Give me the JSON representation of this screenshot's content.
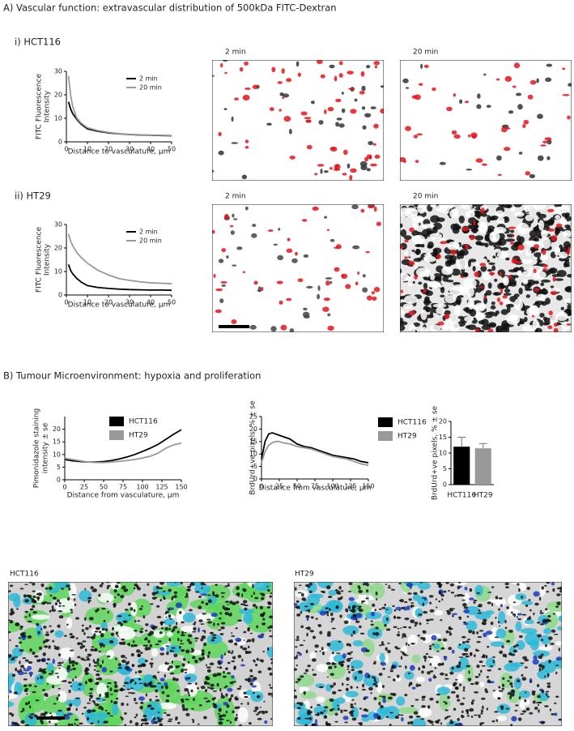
{
  "panel_a": {
    "title": "A)  Vascular function: extravascular distribution of 500kDa FITC-Dextran",
    "row_1": "i)  HCT116",
    "row_2": "ii) HT29",
    "images": [
      "2 min",
      "20 min",
      "2 min",
      "20 min"
    ]
  },
  "panel_b": {
    "title": "B)  Tumour Microenvironment: hypoxia and proliferation",
    "images": [
      "HCT116",
      "HT29"
    ]
  },
  "chart_data": [
    {
      "type": "line",
      "ylabel": [
        "FITC Fluorescence",
        "Intensity"
      ],
      "xlabel": "Distance to vasculature, µm",
      "x": [
        1,
        2,
        3,
        5,
        7,
        10,
        15,
        20,
        25,
        30,
        35,
        40,
        45,
        50
      ],
      "series": [
        {
          "name": "2 min",
          "color": "#000000",
          "values": [
            17,
            14,
            12,
            9.5,
            7.5,
            5.5,
            4.5,
            3.8,
            3.4,
            3.1,
            2.9,
            2.8,
            2.7,
            2.6
          ]
        },
        {
          "name": "20 min",
          "color": "#999999",
          "values": [
            28,
            20,
            15,
            10,
            8,
            6,
            4.8,
            4,
            3.5,
            3.2,
            3,
            2.9,
            2.8,
            2.7
          ]
        }
      ],
      "xlim": [
        0,
        50
      ],
      "xticks": [
        0,
        10,
        20,
        30,
        40,
        50
      ],
      "ylim": [
        0,
        30
      ],
      "yticks": [
        0,
        10,
        20,
        30
      ],
      "legend_marker": "line"
    },
    {
      "type": "line",
      "ylabel": [
        "FITC Fluorescence",
        "Intensity"
      ],
      "xlabel": "Distance to vasculature, µm",
      "x": [
        1,
        2,
        3,
        5,
        7,
        10,
        15,
        20,
        25,
        30,
        35,
        40,
        45,
        50
      ],
      "series": [
        {
          "name": "2 min",
          "color": "#000000",
          "values": [
            13,
            10.5,
            9,
            7,
            5.5,
            4,
            3.2,
            2.8,
            2.5,
            2.3,
            2.2,
            2.1,
            2.1,
            2
          ]
        },
        {
          "name": "20 min",
          "color": "#999999",
          "values": [
            26,
            23,
            21,
            18,
            16,
            13.5,
            10.5,
            8.5,
            7,
            6.2,
            5.6,
            5.2,
            5,
            4.8
          ]
        }
      ],
      "xlim": [
        0,
        50
      ],
      "xticks": [
        0,
        10,
        20,
        30,
        40,
        50
      ],
      "ylim": [
        0,
        30
      ],
      "yticks": [
        0,
        10,
        20,
        30
      ],
      "legend_marker": "line"
    },
    {
      "type": "line",
      "ylabel": [
        "Pimonidazole staining",
        "intensity ± se"
      ],
      "xlabel": "Distance from vasculature, µm",
      "x": [
        0,
        10,
        20,
        30,
        40,
        50,
        60,
        70,
        80,
        90,
        100,
        110,
        120,
        130,
        140,
        150
      ],
      "series": [
        {
          "name": "HCT116",
          "color": "#000000",
          "values": [
            8,
            7.5,
            7.2,
            7,
            7,
            7.2,
            7.6,
            8.2,
            9,
            10,
            11.2,
            12.5,
            14,
            16,
            18,
            19.8
          ]
        },
        {
          "name": "HT29",
          "color": "#999999",
          "values": [
            8.5,
            8,
            7.5,
            7,
            6.8,
            6.8,
            7,
            7.3,
            7.6,
            8,
            8.6,
            9.3,
            10.5,
            12.5,
            13.8,
            14.5
          ]
        }
      ],
      "xlim": [
        0,
        150
      ],
      "xticks": [
        0,
        25,
        50,
        75,
        100,
        125,
        150
      ],
      "ylim": [
        0,
        25
      ],
      "yticks": [
        0,
        5,
        10,
        15,
        20
      ],
      "legend_marker": "square"
    },
    {
      "type": "line",
      "ylabel": [
        "BrdUrd+ve pixels, % ± se"
      ],
      "xlabel": "Distance from vasculature, µm",
      "x": [
        0,
        5,
        10,
        15,
        20,
        25,
        30,
        40,
        50,
        60,
        70,
        80,
        90,
        100,
        110,
        120,
        130,
        140,
        150
      ],
      "series": [
        {
          "name": "HCT116",
          "color": "#000000",
          "values": [
            8,
            15,
            18,
            18.5,
            18,
            17.5,
            17,
            16,
            14,
            13,
            12.5,
            11.5,
            10.5,
            9.5,
            9,
            8.5,
            8,
            7,
            6.5
          ]
        },
        {
          "name": "HT29",
          "color": "#999999",
          "values": [
            6.5,
            11,
            13.5,
            14.5,
            15,
            15,
            14.5,
            14,
            13,
            12.5,
            12,
            11,
            10,
            9,
            8.5,
            8,
            7,
            6,
            5.5
          ]
        }
      ],
      "xlim": [
        0,
        150
      ],
      "xticks": [
        0,
        25,
        50,
        75,
        100,
        125,
        150
      ],
      "ylim": [
        0,
        25
      ],
      "yticks": [
        0,
        5,
        10,
        15,
        20,
        25
      ],
      "legend_marker": "square"
    },
    {
      "type": "bar",
      "ylabel": [
        "BrdUrd+ve pixels, % ± se"
      ],
      "categories": [
        "HCT116",
        "HT29"
      ],
      "values": [
        12,
        11.5
      ],
      "errors": [
        3,
        1.5
      ],
      "colors": [
        "#000000",
        "#999999"
      ],
      "ylim": [
        0,
        20
      ],
      "yticks": [
        0,
        5,
        10,
        15,
        20
      ]
    }
  ]
}
